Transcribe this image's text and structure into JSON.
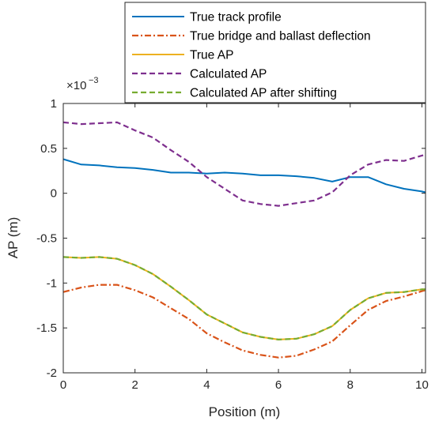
{
  "chart_data": {
    "type": "line",
    "xlabel": "Position (m)",
    "ylabel": "AP (m)",
    "xlim": [
      0,
      10.1
    ],
    "ylim": [
      -2,
      1
    ],
    "y_exponent": {
      "base": "×10",
      "power": "−3"
    },
    "xticks": [
      0,
      2,
      4,
      6,
      8,
      10
    ],
    "xtick_labels": [
      "0",
      "2",
      "4",
      "6",
      "8",
      "10"
    ],
    "yticks": [
      1,
      0.5,
      0,
      -0.5,
      -1,
      -1.5,
      -2
    ],
    "ytick_labels": [
      "1",
      "0.5",
      "0",
      "-0.5",
      "-1",
      "-1.5",
      "-2"
    ],
    "grid": false,
    "legend_position": "top-right",
    "x": [
      0,
      0.5,
      1.0,
      1.5,
      2.0,
      2.5,
      3.0,
      3.5,
      4.0,
      4.5,
      5.0,
      5.5,
      6.0,
      6.5,
      7.0,
      7.5,
      8.0,
      8.5,
      9.0,
      9.5,
      10.0,
      10.1
    ],
    "series": [
      {
        "name": "True track profile",
        "color": "#0072BD",
        "style": "solid",
        "values": [
          0.38,
          0.32,
          0.31,
          0.29,
          0.28,
          0.26,
          0.23,
          0.23,
          0.22,
          0.23,
          0.22,
          0.2,
          0.2,
          0.19,
          0.17,
          0.13,
          0.18,
          0.18,
          0.1,
          0.05,
          0.02,
          0.01
        ]
      },
      {
        "name": "True bridge and ballast deflection",
        "color": "#D95319",
        "style": "dashdot",
        "values": [
          -1.1,
          -1.05,
          -1.02,
          -1.02,
          -1.08,
          -1.16,
          -1.28,
          -1.4,
          -1.56,
          -1.66,
          -1.75,
          -1.8,
          -1.83,
          -1.81,
          -1.74,
          -1.65,
          -1.47,
          -1.3,
          -1.2,
          -1.15,
          -1.09,
          -1.08
        ]
      },
      {
        "name": "True AP",
        "color": "#EDB120",
        "style": "solid",
        "values": [
          -0.71,
          -0.72,
          -0.71,
          -0.73,
          -0.8,
          -0.9,
          -1.04,
          -1.19,
          -1.35,
          -1.45,
          -1.55,
          -1.6,
          -1.63,
          -1.62,
          -1.57,
          -1.48,
          -1.3,
          -1.17,
          -1.11,
          -1.1,
          -1.07,
          -1.07
        ]
      },
      {
        "name": "Calculated AP",
        "color": "#7E2F8E",
        "style": "dashed",
        "values": [
          0.79,
          0.77,
          0.78,
          0.79,
          0.7,
          0.62,
          0.48,
          0.35,
          0.18,
          0.05,
          -0.08,
          -0.12,
          -0.14,
          -0.11,
          -0.08,
          0.01,
          0.2,
          0.32,
          0.37,
          0.36,
          0.42,
          0.43
        ]
      },
      {
        "name": "Calculated AP after shifting",
        "color": "#77AC30",
        "style": "dashed",
        "values": [
          -0.71,
          -0.72,
          -0.71,
          -0.73,
          -0.8,
          -0.9,
          -1.04,
          -1.19,
          -1.35,
          -1.45,
          -1.55,
          -1.6,
          -1.63,
          -1.62,
          -1.57,
          -1.48,
          -1.3,
          -1.17,
          -1.11,
          -1.1,
          -1.07,
          -1.07
        ]
      }
    ]
  }
}
